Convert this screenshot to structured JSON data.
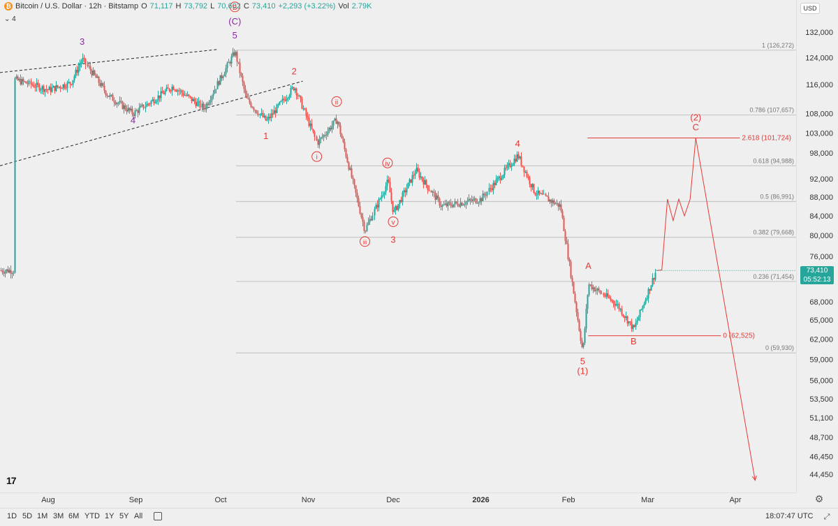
{
  "header": {
    "coin_glyph": "₿",
    "symbol": "Bitcoin / U.S. Dollar · 12h · Bitstamp",
    "o_label": "O",
    "o_value": "71,117",
    "h_label": "H",
    "h_value": "73,792",
    "l_label": "L",
    "l_value": "70,602",
    "c_label": "C",
    "c_value": "73,410",
    "change": "+2,293 (+3.22%)",
    "vol_label": "Vol",
    "vol_value": "2.79K",
    "indicator_toggle": "⌄ 4",
    "currency": "USD"
  },
  "last_price": {
    "value": "73,410",
    "countdown": "05:52:13",
    "color": "#26a69a"
  },
  "colors": {
    "up": "#26a69a",
    "down": "#ef5350",
    "wave_red": "#e53935",
    "wave_purple": "#8e24aa",
    "fib": "#c8c8c8"
  },
  "chart_data": {
    "type": "candlestick",
    "title": "Bitcoin / U.S. Dollar · 12h · Bitstamp",
    "x_axis_labels": [
      "Aug",
      "Sep",
      "Oct",
      "Nov",
      "Dec",
      "2026",
      "Feb",
      "Mar",
      "Apr"
    ],
    "y_scale": "log",
    "ylim": [
      43500,
      136000
    ],
    "y_ticks": [
      132000,
      124000,
      116000,
      108000,
      103000,
      98000,
      92000,
      88000,
      84000,
      80000,
      76000,
      72000,
      68000,
      65000,
      62000,
      59000,
      56000,
      53500,
      51100,
      48700,
      46450,
      44450
    ],
    "price_path": [
      {
        "date": "2025-07-20",
        "price": 117500
      },
      {
        "date": "2025-08-01",
        "price": 114500
      },
      {
        "date": "2025-08-09",
        "price": 116500
      },
      {
        "date": "2025-08-13",
        "price": 123500
      },
      {
        "date": "2025-08-22",
        "price": 113000
      },
      {
        "date": "2025-08-31",
        "price": 108000
      },
      {
        "date": "2025-09-14",
        "price": 115500
      },
      {
        "date": "2025-09-25",
        "price": 109500
      },
      {
        "date": "2025-10-06",
        "price": 125800
      },
      {
        "date": "2025-10-10",
        "price": 112000
      },
      {
        "date": "2025-10-17",
        "price": 106000
      },
      {
        "date": "2025-10-27",
        "price": 115500
      },
      {
        "date": "2025-11-04",
        "price": 100500
      },
      {
        "date": "2025-11-11",
        "price": 106500
      },
      {
        "date": "2025-11-21",
        "price": 81000
      },
      {
        "date": "2025-11-29",
        "price": 91500
      },
      {
        "date": "2025-12-01",
        "price": 84500
      },
      {
        "date": "2025-12-09",
        "price": 94000
      },
      {
        "date": "2025-12-18",
        "price": 86000
      },
      {
        "date": "2026-01-01",
        "price": 87500
      },
      {
        "date": "2026-01-14",
        "price": 97500
      },
      {
        "date": "2026-01-20",
        "price": 89000
      },
      {
        "date": "2026-01-29",
        "price": 86000
      },
      {
        "date": "2026-02-06",
        "price": 60000
      },
      {
        "date": "2026-02-08",
        "price": 71000
      },
      {
        "date": "2026-02-18",
        "price": 67500
      },
      {
        "date": "2026-02-24",
        "price": 63500
      },
      {
        "date": "2026-03-04",
        "price": 73410
      }
    ],
    "projection": [
      {
        "date": "2026-03-06",
        "price": 73500
      },
      {
        "date": "2026-03-08",
        "price": 87500
      },
      {
        "date": "2026-03-10",
        "price": 83000
      },
      {
        "date": "2026-03-12",
        "price": 87500
      },
      {
        "date": "2026-03-14",
        "price": 84000
      },
      {
        "date": "2026-03-16",
        "price": 87500
      },
      {
        "date": "2026-03-18",
        "price": 101724
      },
      {
        "date": "2026-04-08",
        "price": 43800
      }
    ],
    "fib_levels": [
      {
        "label": "1 (126,272)",
        "price": 126272
      },
      {
        "label": "0.786 (107,657)",
        "price": 107657
      },
      {
        "label": "0.618 (94,988)",
        "price": 94988
      },
      {
        "label": "0.5 (86,991)",
        "price": 86991
      },
      {
        "label": "0.382 (79,668)",
        "price": 79668
      },
      {
        "label": "0.236 (71,454)",
        "price": 71454
      },
      {
        "label": "0 (59,930)",
        "price": 59930
      }
    ],
    "ext_levels": [
      {
        "label": "2.618 (101,724)",
        "price": 101724,
        "from": "2026-02-06",
        "to": "2026-03-20"
      },
      {
        "label": "0 (62,525)",
        "price": 62525,
        "from": "2026-02-06",
        "to": "2026-03-20"
      }
    ],
    "trendlines": [
      {
        "from": {
          "date": "2025-07-14",
          "price": 119500
        },
        "to": {
          "date": "2025-09-30",
          "price": 126500
        }
      },
      {
        "from": {
          "date": "2025-07-14",
          "price": 95000
        },
        "to": {
          "date": "2025-10-30",
          "price": 117000
        }
      }
    ],
    "wave_labels": [
      {
        "text": "3",
        "date": "2025-08-13",
        "price": 128000,
        "color": "purple",
        "style": "plain"
      },
      {
        "text": "4",
        "date": "2025-08-31",
        "price": 105500,
        "color": "purple",
        "style": "plain"
      },
      {
        "text": "B",
        "date": "2025-10-06",
        "price": 139500,
        "color": "red",
        "style": "circle"
      },
      {
        "text": "(C)",
        "date": "2025-10-06",
        "price": 134500,
        "color": "purple",
        "style": "plain"
      },
      {
        "text": "5",
        "date": "2025-10-06",
        "price": 130000,
        "color": "purple",
        "style": "plain"
      },
      {
        "text": "2",
        "date": "2025-10-27",
        "price": 119000,
        "color": "red",
        "style": "plain"
      },
      {
        "text": "1",
        "date": "2025-10-17",
        "price": 101500,
        "color": "red",
        "style": "plain"
      },
      {
        "text": "ii",
        "date": "2025-11-11",
        "price": 110500,
        "color": "red",
        "style": "circle"
      },
      {
        "text": "i",
        "date": "2025-11-04",
        "price": 96500,
        "color": "red",
        "style": "circle"
      },
      {
        "text": "iv",
        "date": "2025-11-29",
        "price": 95000,
        "color": "red",
        "style": "circle"
      },
      {
        "text": "iii",
        "date": "2025-11-21",
        "price": 78300,
        "color": "red",
        "style": "circle"
      },
      {
        "text": "v",
        "date": "2025-12-01",
        "price": 82200,
        "color": "red",
        "style": "circle"
      },
      {
        "text": "3",
        "date": "2025-12-01",
        "price": 78600,
        "color": "red",
        "style": "plain"
      },
      {
        "text": "4",
        "date": "2026-01-14",
        "price": 99600,
        "color": "red",
        "style": "plain"
      },
      {
        "text": "A",
        "date": "2026-02-08",
        "price": 73700,
        "color": "red",
        "style": "plain"
      },
      {
        "text": "B",
        "date": "2026-02-24",
        "price": 61200,
        "color": "red",
        "style": "plain"
      },
      {
        "text": "5",
        "date": "2026-02-06",
        "price": 58300,
        "color": "red",
        "style": "plain"
      },
      {
        "text": "(1)",
        "date": "2026-02-06",
        "price": 56900,
        "color": "red",
        "style": "plain"
      },
      {
        "text": "(2)",
        "date": "2026-03-18",
        "price": 106200,
        "color": "red",
        "style": "plain"
      },
      {
        "text": "C",
        "date": "2026-03-18",
        "price": 103700,
        "color": "red",
        "style": "plain"
      }
    ]
  },
  "timeframes": [
    "1D",
    "5D",
    "1M",
    "3M",
    "6M",
    "YTD",
    "1Y",
    "5Y",
    "All"
  ],
  "clock": "18:07:47 UTC",
  "logo_text": "17"
}
